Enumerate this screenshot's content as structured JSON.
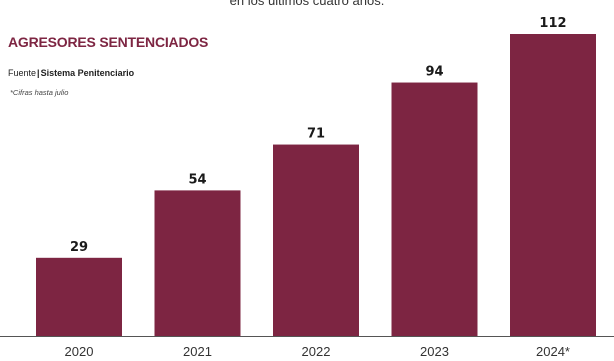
{
  "caption": "en los últimos cuatro años.",
  "header": {
    "title": "AGRESORES SENTENCIADOS",
    "source_prefix": "Fuente",
    "source_separator": "|",
    "source_name": "Sistema Penitenciario",
    "note": "*Cifras hasta julio"
  },
  "colors": {
    "bar": "#7d2542",
    "title": "#7d2542",
    "baseline": "#555555"
  },
  "chart_data": {
    "type": "bar",
    "title": "AGRESORES SENTENCIADOS",
    "categories": [
      "2020",
      "2021",
      "2022",
      "2023",
      "2024*"
    ],
    "values": [
      29,
      54,
      71,
      94,
      112
    ],
    "xlabel": "",
    "ylabel": "",
    "ylim": [
      0,
      112
    ],
    "grid": false,
    "legend": "none",
    "data_labels": true
  }
}
